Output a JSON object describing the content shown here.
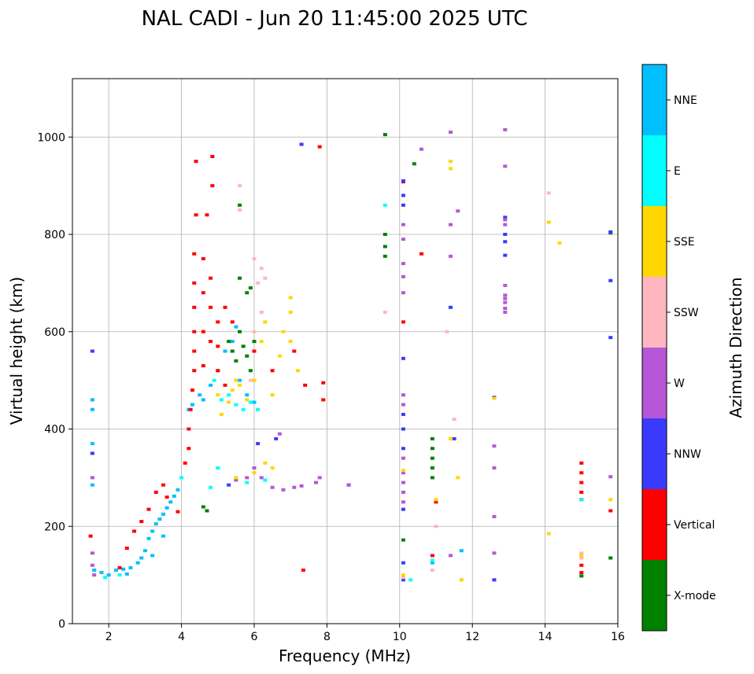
{
  "chart_data": {
    "type": "scatter",
    "title": "NAL CADI - Jun 20 11:45:00 2025 UTC",
    "xlabel": "Frequency (MHz)",
    "ylabel": "Virtual height (km)",
    "xlim": [
      1,
      16
    ],
    "ylim": [
      0,
      1120
    ],
    "x_ticks": [
      2,
      4,
      6,
      8,
      10,
      12,
      14,
      16
    ],
    "y_ticks": [
      0,
      200,
      400,
      600,
      800,
      1000
    ],
    "grid": true,
    "colorbar": {
      "label": "Azimuth Direction",
      "categories": [
        {
          "name": "X-mode",
          "color": "#008000"
        },
        {
          "name": "Vertical",
          "color": "#ff0000"
        },
        {
          "name": "NNW",
          "color": "#3a3aff"
        },
        {
          "name": "W",
          "color": "#b557d6"
        },
        {
          "name": "SSW",
          "color": "#ffb6c1"
        },
        {
          "name": "SSE",
          "color": "#ffd700"
        },
        {
          "name": "E",
          "color": "#00ffff"
        },
        {
          "name": "NNE",
          "color": "#00bfff"
        }
      ]
    },
    "series": [
      {
        "name": "NNE",
        "points": [
          [
            1.55,
            460
          ],
          [
            1.55,
            440
          ],
          [
            1.55,
            370
          ],
          [
            1.55,
            285
          ],
          [
            1.6,
            110
          ],
          [
            1.8,
            105
          ],
          [
            2.0,
            100
          ],
          [
            2.2,
            110
          ],
          [
            2.4,
            112
          ],
          [
            2.6,
            115
          ],
          [
            2.8,
            125
          ],
          [
            2.9,
            135
          ],
          [
            3.0,
            150
          ],
          [
            3.1,
            175
          ],
          [
            3.2,
            190
          ],
          [
            3.3,
            205
          ],
          [
            3.4,
            215
          ],
          [
            3.5,
            225
          ],
          [
            3.6,
            238
          ],
          [
            3.7,
            250
          ],
          [
            3.8,
            262
          ],
          [
            3.9,
            275
          ],
          [
            4.2,
            440
          ],
          [
            4.3,
            450
          ],
          [
            4.5,
            470
          ],
          [
            4.6,
            460
          ],
          [
            4.8,
            490
          ],
          [
            5.0,
            520
          ],
          [
            5.2,
            560
          ],
          [
            5.4,
            580
          ],
          [
            5.5,
            610
          ],
          [
            5.6,
            500
          ],
          [
            5.8,
            470
          ],
          [
            6.0,
            455
          ],
          [
            2.5,
            102
          ],
          [
            3.2,
            140
          ],
          [
            3.5,
            180
          ],
          [
            10.9,
            125
          ],
          [
            11.7,
            150
          ]
        ]
      },
      {
        "name": "Vertical",
        "points": [
          [
            1.5,
            180
          ],
          [
            2.3,
            115
          ],
          [
            2.5,
            155
          ],
          [
            2.7,
            190
          ],
          [
            2.9,
            210
          ],
          [
            3.1,
            235
          ],
          [
            3.3,
            270
          ],
          [
            3.5,
            285
          ],
          [
            3.6,
            260
          ],
          [
            3.9,
            230
          ],
          [
            4.1,
            330
          ],
          [
            4.2,
            360
          ],
          [
            4.2,
            400
          ],
          [
            4.25,
            440
          ],
          [
            4.3,
            480
          ],
          [
            4.35,
            520
          ],
          [
            4.35,
            560
          ],
          [
            4.35,
            600
          ],
          [
            4.35,
            650
          ],
          [
            4.35,
            700
          ],
          [
            4.35,
            760
          ],
          [
            4.4,
            840
          ],
          [
            4.4,
            950
          ],
          [
            4.6,
            530
          ],
          [
            4.6,
            600
          ],
          [
            4.6,
            680
          ],
          [
            4.6,
            750
          ],
          [
            4.7,
            840
          ],
          [
            4.8,
            580
          ],
          [
            4.8,
            650
          ],
          [
            4.8,
            710
          ],
          [
            4.85,
            900
          ],
          [
            4.85,
            960
          ],
          [
            5.0,
            520
          ],
          [
            5.0,
            570
          ],
          [
            5.0,
            620
          ],
          [
            5.2,
            490
          ],
          [
            5.2,
            650
          ],
          [
            5.4,
            620
          ],
          [
            6.0,
            560
          ],
          [
            7.4,
            490
          ],
          [
            7.9,
            460
          ],
          [
            7.9,
            495
          ],
          [
            7.8,
            980
          ],
          [
            7.1,
            560
          ],
          [
            6.5,
            520
          ],
          [
            10.1,
            620
          ],
          [
            10.1,
            908
          ],
          [
            10.6,
            760
          ],
          [
            11.0,
            250
          ],
          [
            7.35,
            110
          ],
          [
            10.9,
            140
          ],
          [
            15.0,
            330
          ],
          [
            15.0,
            310
          ],
          [
            15.0,
            290
          ],
          [
            15.0,
            270
          ],
          [
            15.0,
            255
          ],
          [
            15.0,
            120
          ],
          [
            15.0,
            105
          ],
          [
            15.8,
            232
          ]
        ]
      },
      {
        "name": "X-mode",
        "points": [
          [
            4.6,
            240
          ],
          [
            4.7,
            232
          ],
          [
            5.3,
            580
          ],
          [
            5.4,
            560
          ],
          [
            5.5,
            540
          ],
          [
            5.6,
            600
          ],
          [
            5.7,
            570
          ],
          [
            5.8,
            550
          ],
          [
            5.9,
            520
          ],
          [
            5.9,
            690
          ],
          [
            6.0,
            580
          ],
          [
            5.6,
            710
          ],
          [
            5.8,
            680
          ],
          [
            5.6,
            860
          ],
          [
            9.6,
            800
          ],
          [
            9.6,
            775
          ],
          [
            9.6,
            755
          ],
          [
            9.6,
            1005
          ],
          [
            10.1,
            172
          ],
          [
            10.4,
            945
          ],
          [
            10.9,
            380
          ],
          [
            10.9,
            360
          ],
          [
            10.9,
            340
          ],
          [
            10.9,
            320
          ],
          [
            10.9,
            300
          ],
          [
            15.0,
            98
          ],
          [
            15.8,
            135
          ],
          [
            15.8,
            803
          ]
        ]
      },
      {
        "name": "NNW",
        "points": [
          [
            1.55,
            560
          ],
          [
            1.55,
            350
          ],
          [
            5.3,
            285
          ],
          [
            6.1,
            370
          ],
          [
            6.6,
            380
          ],
          [
            8.6,
            285
          ],
          [
            10.1,
            910
          ],
          [
            10.1,
            880
          ],
          [
            10.1,
            860
          ],
          [
            10.1,
            545
          ],
          [
            10.1,
            430
          ],
          [
            10.1,
            400
          ],
          [
            10.1,
            360
          ],
          [
            10.1,
            235
          ],
          [
            10.1,
            125
          ],
          [
            10.1,
            90
          ],
          [
            11.4,
            650
          ],
          [
            11.5,
            380
          ],
          [
            12.6,
            465
          ],
          [
            12.6,
            90
          ],
          [
            12.9,
            800
          ],
          [
            12.9,
            785
          ],
          [
            12.9,
            757
          ],
          [
            12.9,
            835
          ],
          [
            15.8,
            805
          ],
          [
            15.8,
            705
          ],
          [
            15.8,
            588
          ],
          [
            7.3,
            985
          ]
        ]
      },
      {
        "name": "W",
        "points": [
          [
            1.55,
            300
          ],
          [
            1.55,
            145
          ],
          [
            1.55,
            120
          ],
          [
            1.6,
            100
          ],
          [
            5.5,
            295
          ],
          [
            5.8,
            300
          ],
          [
            6.0,
            320
          ],
          [
            6.2,
            300
          ],
          [
            6.5,
            280
          ],
          [
            6.8,
            275
          ],
          [
            7.1,
            280
          ],
          [
            7.3,
            283
          ],
          [
            7.7,
            290
          ],
          [
            7.8,
            300
          ],
          [
            8.6,
            285
          ],
          [
            6.7,
            390
          ],
          [
            10.1,
            820
          ],
          [
            10.1,
            790
          ],
          [
            10.1,
            740
          ],
          [
            10.1,
            713
          ],
          [
            10.1,
            680
          ],
          [
            10.1,
            470
          ],
          [
            10.1,
            450
          ],
          [
            10.1,
            340
          ],
          [
            10.1,
            310
          ],
          [
            10.1,
            290
          ],
          [
            10.1,
            270
          ],
          [
            10.1,
            250
          ],
          [
            11.4,
            140
          ],
          [
            11.4,
            820
          ],
          [
            11.6,
            848
          ],
          [
            12.6,
            365
          ],
          [
            12.6,
            320
          ],
          [
            12.6,
            220
          ],
          [
            12.6,
            145
          ],
          [
            12.9,
            1015
          ],
          [
            12.9,
            940
          ],
          [
            12.9,
            830
          ],
          [
            12.9,
            820
          ],
          [
            12.9,
            695
          ],
          [
            12.9,
            675
          ],
          [
            12.9,
            668
          ],
          [
            12.9,
            660
          ],
          [
            12.9,
            648
          ],
          [
            12.9,
            640
          ],
          [
            15.8,
            302
          ],
          [
            10.6,
            975
          ],
          [
            11.4,
            1010
          ],
          [
            11.4,
            755
          ]
        ]
      },
      {
        "name": "SSW",
        "points": [
          [
            5.6,
            900
          ],
          [
            5.6,
            850
          ],
          [
            6.0,
            750
          ],
          [
            6.1,
            700
          ],
          [
            6.2,
            730
          ],
          [
            6.3,
            710
          ],
          [
            6.2,
            640
          ],
          [
            6.0,
            600
          ],
          [
            5.9,
            500
          ],
          [
            10.1,
            95
          ],
          [
            11.0,
            200
          ],
          [
            10.9,
            110
          ],
          [
            11.3,
            600
          ],
          [
            11.5,
            420
          ],
          [
            11.7,
            90
          ],
          [
            14.1,
            885
          ],
          [
            15.0,
            145
          ],
          [
            15.0,
            135
          ],
          [
            9.6,
            640
          ]
        ]
      },
      {
        "name": "SSE",
        "points": [
          [
            5.0,
            470
          ],
          [
            5.1,
            430
          ],
          [
            5.3,
            455
          ],
          [
            5.4,
            480
          ],
          [
            5.5,
            500
          ],
          [
            5.6,
            490
          ],
          [
            5.8,
            460
          ],
          [
            6.0,
            500
          ],
          [
            6.2,
            580
          ],
          [
            6.3,
            620
          ],
          [
            6.5,
            470
          ],
          [
            6.7,
            550
          ],
          [
            6.8,
            600
          ],
          [
            7.0,
            580
          ],
          [
            7.0,
            640
          ],
          [
            7.0,
            670
          ],
          [
            7.2,
            520
          ],
          [
            6.5,
            320
          ],
          [
            6.3,
            330
          ],
          [
            6.0,
            310
          ],
          [
            5.5,
            300
          ],
          [
            10.1,
            315
          ],
          [
            10.1,
            100
          ],
          [
            11.4,
            950
          ],
          [
            11.4,
            935
          ],
          [
            11.6,
            300
          ],
          [
            11.7,
            90
          ],
          [
            12.6,
            463
          ],
          [
            14.1,
            825
          ],
          [
            14.4,
            782
          ],
          [
            14.1,
            185
          ],
          [
            15.8,
            255
          ],
          [
            15.0,
            140
          ],
          [
            11.4,
            380
          ],
          [
            11.0,
            255
          ]
        ]
      },
      {
        "name": "E",
        "points": [
          [
            4.9,
            500
          ],
          [
            5.1,
            460
          ],
          [
            5.3,
            470
          ],
          [
            5.5,
            450
          ],
          [
            5.7,
            440
          ],
          [
            5.9,
            455
          ],
          [
            6.1,
            440
          ],
          [
            4.8,
            280
          ],
          [
            5.0,
            320
          ],
          [
            5.8,
            290
          ],
          [
            6.3,
            295
          ],
          [
            9.6,
            860
          ],
          [
            10.3,
            90
          ],
          [
            10.9,
            130
          ],
          [
            15.0,
            255
          ],
          [
            1.9,
            95
          ],
          [
            2.3,
            100
          ],
          [
            4.0,
            300
          ]
        ]
      }
    ]
  }
}
